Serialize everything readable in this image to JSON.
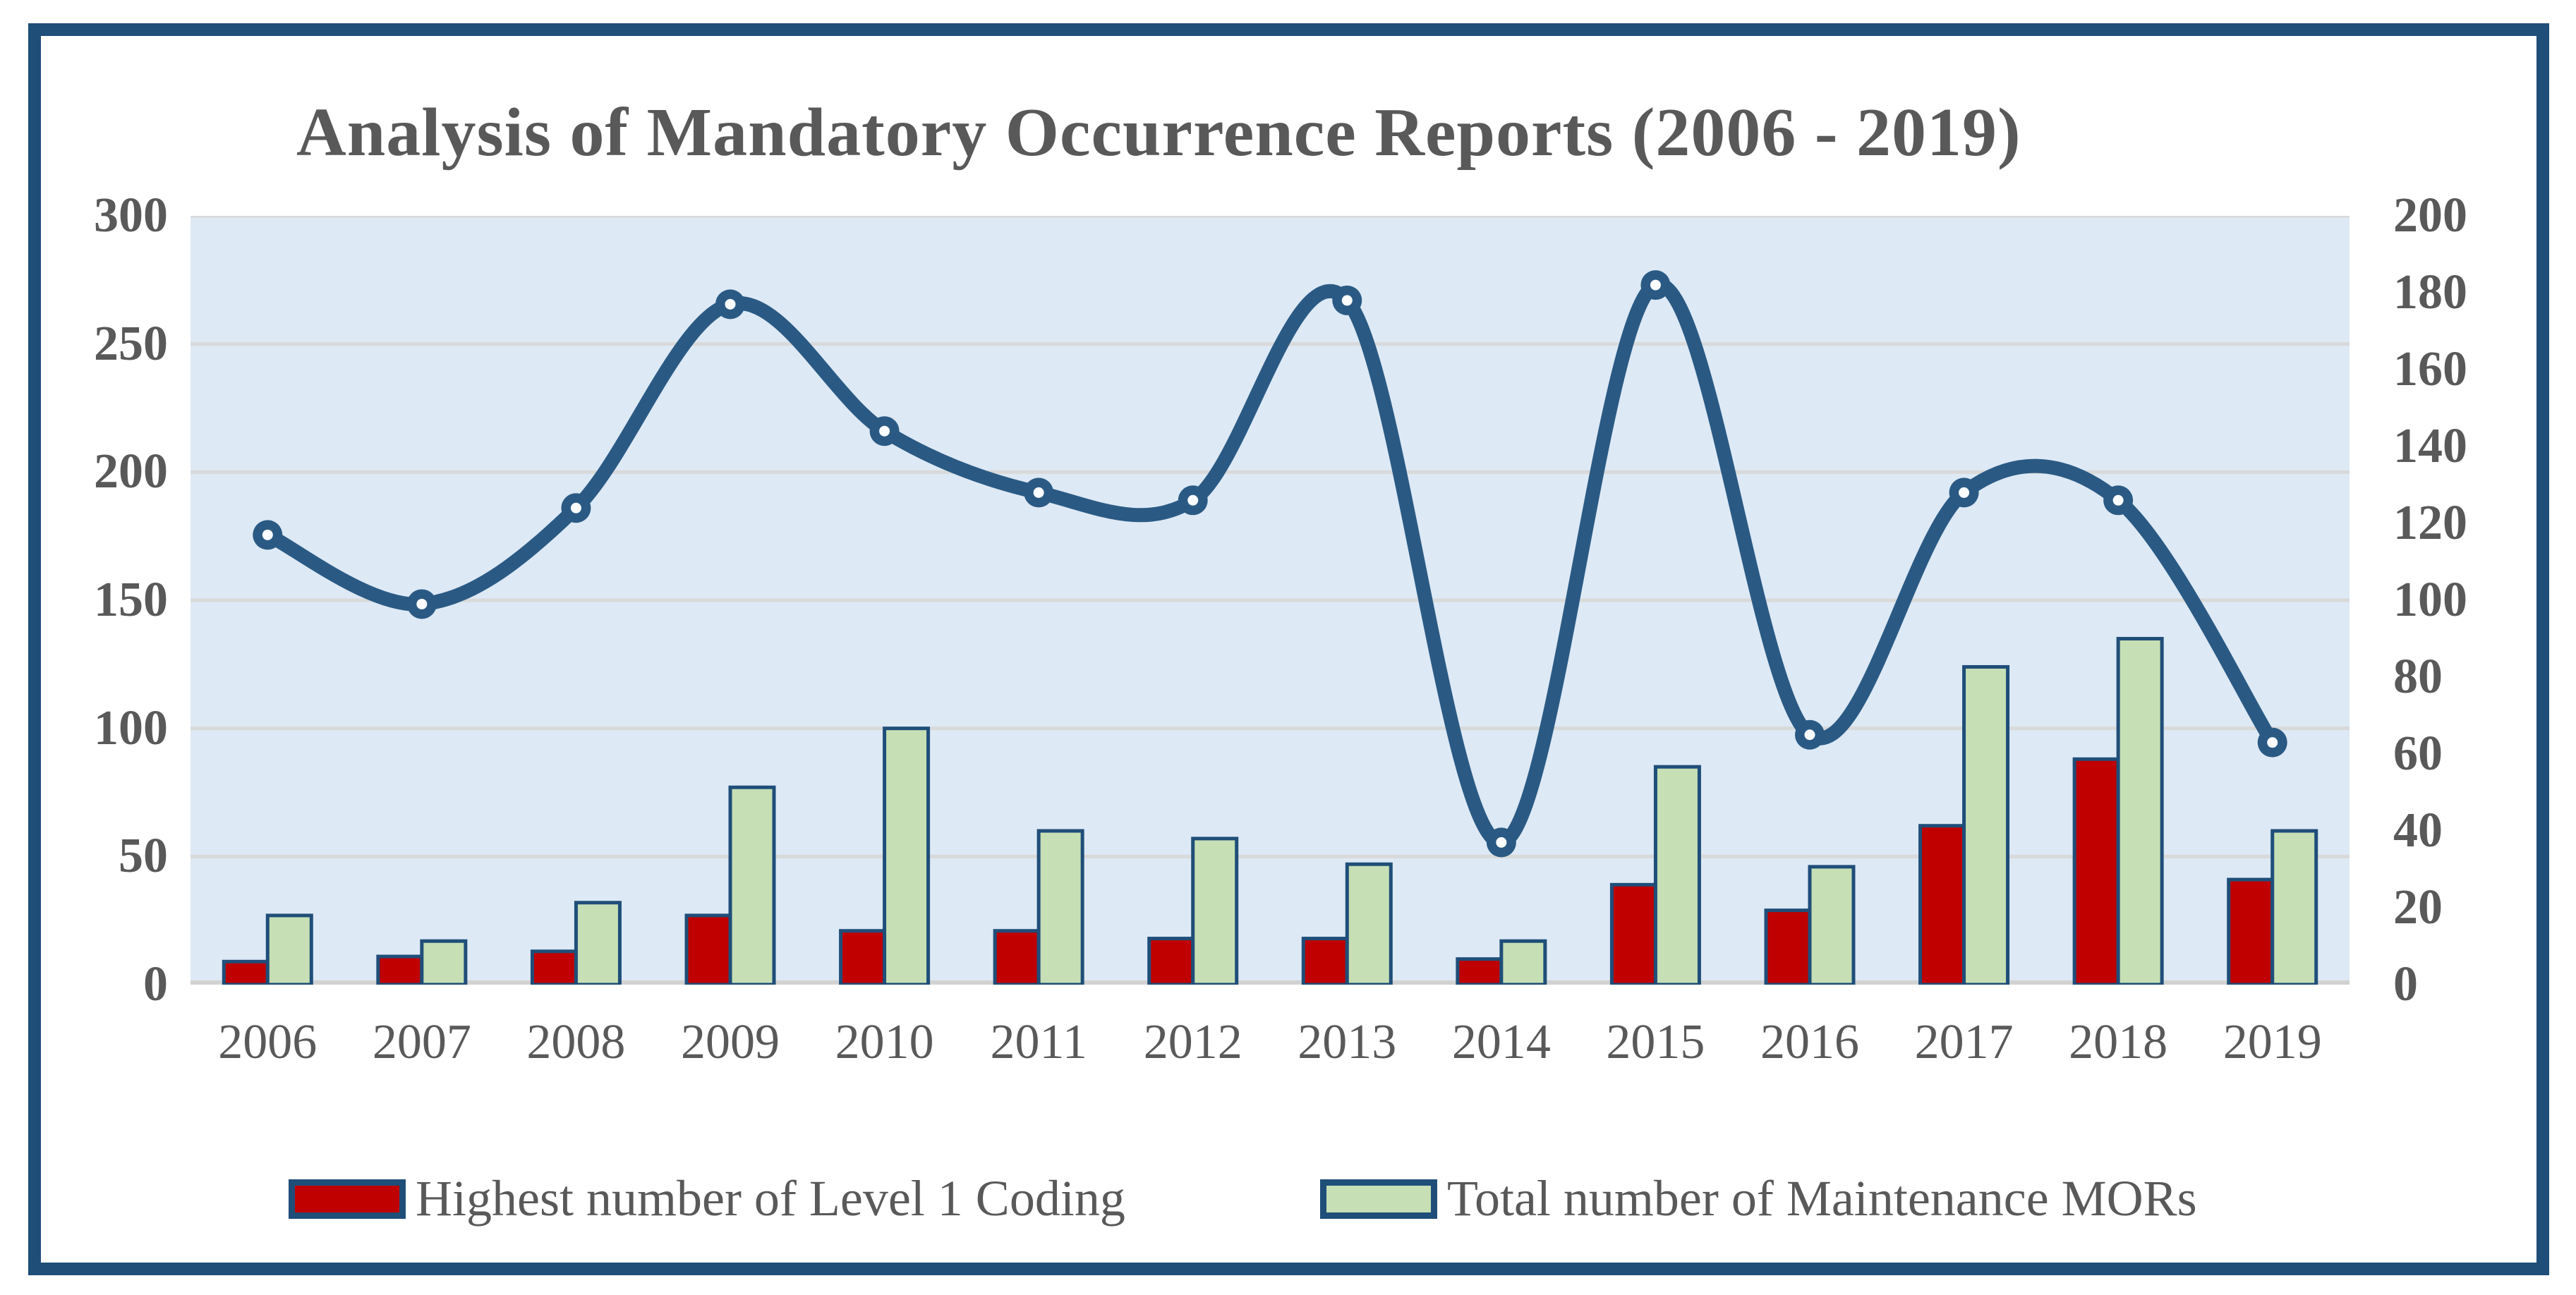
{
  "title": "Analysis of Mandatory Occurrence Reports (2006 - 2019)",
  "colors": {
    "frame": "#1F4E79",
    "bar_outline": "#1F4E79",
    "red": "#C00000",
    "green": "#C6DFB4",
    "line": "#2A5A84",
    "marker_hole": "#FAFCFE",
    "plot_bg": "#DDE9F5",
    "grid": "#D9D9D9",
    "baseline": "#D2D2D2",
    "text": "#595959"
  },
  "chart_data": {
    "type": "bar",
    "subtype": "grouped-bars-with-smooth-line-overlay",
    "title": "Analysis of Mandatory Occurrence Reports (2006 - 2019)",
    "categories": [
      "2006",
      "2007",
      "2008",
      "2009",
      "2010",
      "2011",
      "2012",
      "2013",
      "2014",
      "2015",
      "2016",
      "2017",
      "2018",
      "2019"
    ],
    "series": [
      {
        "name": "Highest number of Level 1 Coding",
        "type": "bar",
        "axis": "left",
        "color": "#C00000",
        "values": [
          9,
          11,
          13,
          27,
          21,
          21,
          18,
          18,
          10,
          39,
          29,
          62,
          88,
          41
        ]
      },
      {
        "name": "Total number of Maintenance MORs",
        "type": "bar",
        "axis": "left",
        "color": "#C6DFB4",
        "values": [
          27,
          17,
          32,
          77,
          100,
          60,
          57,
          47,
          17,
          85,
          46,
          124,
          135,
          60
        ]
      },
      {
        "name": "",
        "type": "line",
        "axis": "right",
        "color": "#2A5A84",
        "values": [
          117,
          99,
          124,
          177,
          144,
          128,
          126,
          178,
          37,
          182,
          65,
          128,
          126,
          63
        ]
      }
    ],
    "left_axis": {
      "min": 0,
      "max": 300,
      "step": 50,
      "ticks": [
        "0",
        "50",
        "100",
        "150",
        "200",
        "250",
        "300"
      ]
    },
    "right_axis": {
      "min": 0,
      "max": 200,
      "step": 20,
      "ticks": [
        "0",
        "20",
        "40",
        "60",
        "80",
        "100",
        "120",
        "140",
        "160",
        "180",
        "200"
      ]
    },
    "grid": true,
    "legend_position": "bottom",
    "xlabel": "",
    "ylabel": ""
  },
  "legend": {
    "items": [
      {
        "label": "Highest number of Level 1 Coding",
        "color": "#C00000"
      },
      {
        "label": "Total number of Maintenance MORs",
        "color": "#C6DFB4"
      }
    ]
  }
}
